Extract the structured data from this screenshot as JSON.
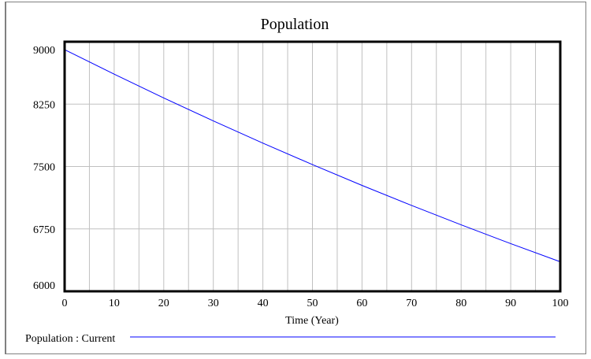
{
  "chart_data": {
    "type": "line",
    "title": "Population",
    "xlabel": "Time (Year)",
    "ylabel": "",
    "xlim": [
      0,
      100
    ],
    "ylim": [
      6000,
      9000
    ],
    "xticks": [
      0,
      10,
      20,
      30,
      40,
      50,
      60,
      70,
      80,
      90,
      100
    ],
    "yticks": [
      9000,
      8250,
      7500,
      6750,
      6000
    ],
    "grid": true,
    "legend_position": "bottom",
    "series": [
      {
        "name": "Population : Current",
        "color": "#0000ff",
        "x": [
          0,
          10,
          20,
          30,
          40,
          50,
          60,
          70,
          80,
          90,
          100
        ],
        "y": [
          8905,
          8610,
          8324,
          8048,
          7781,
          7523,
          7273,
          7032,
          6799,
          6573,
          6355
        ]
      }
    ]
  }
}
